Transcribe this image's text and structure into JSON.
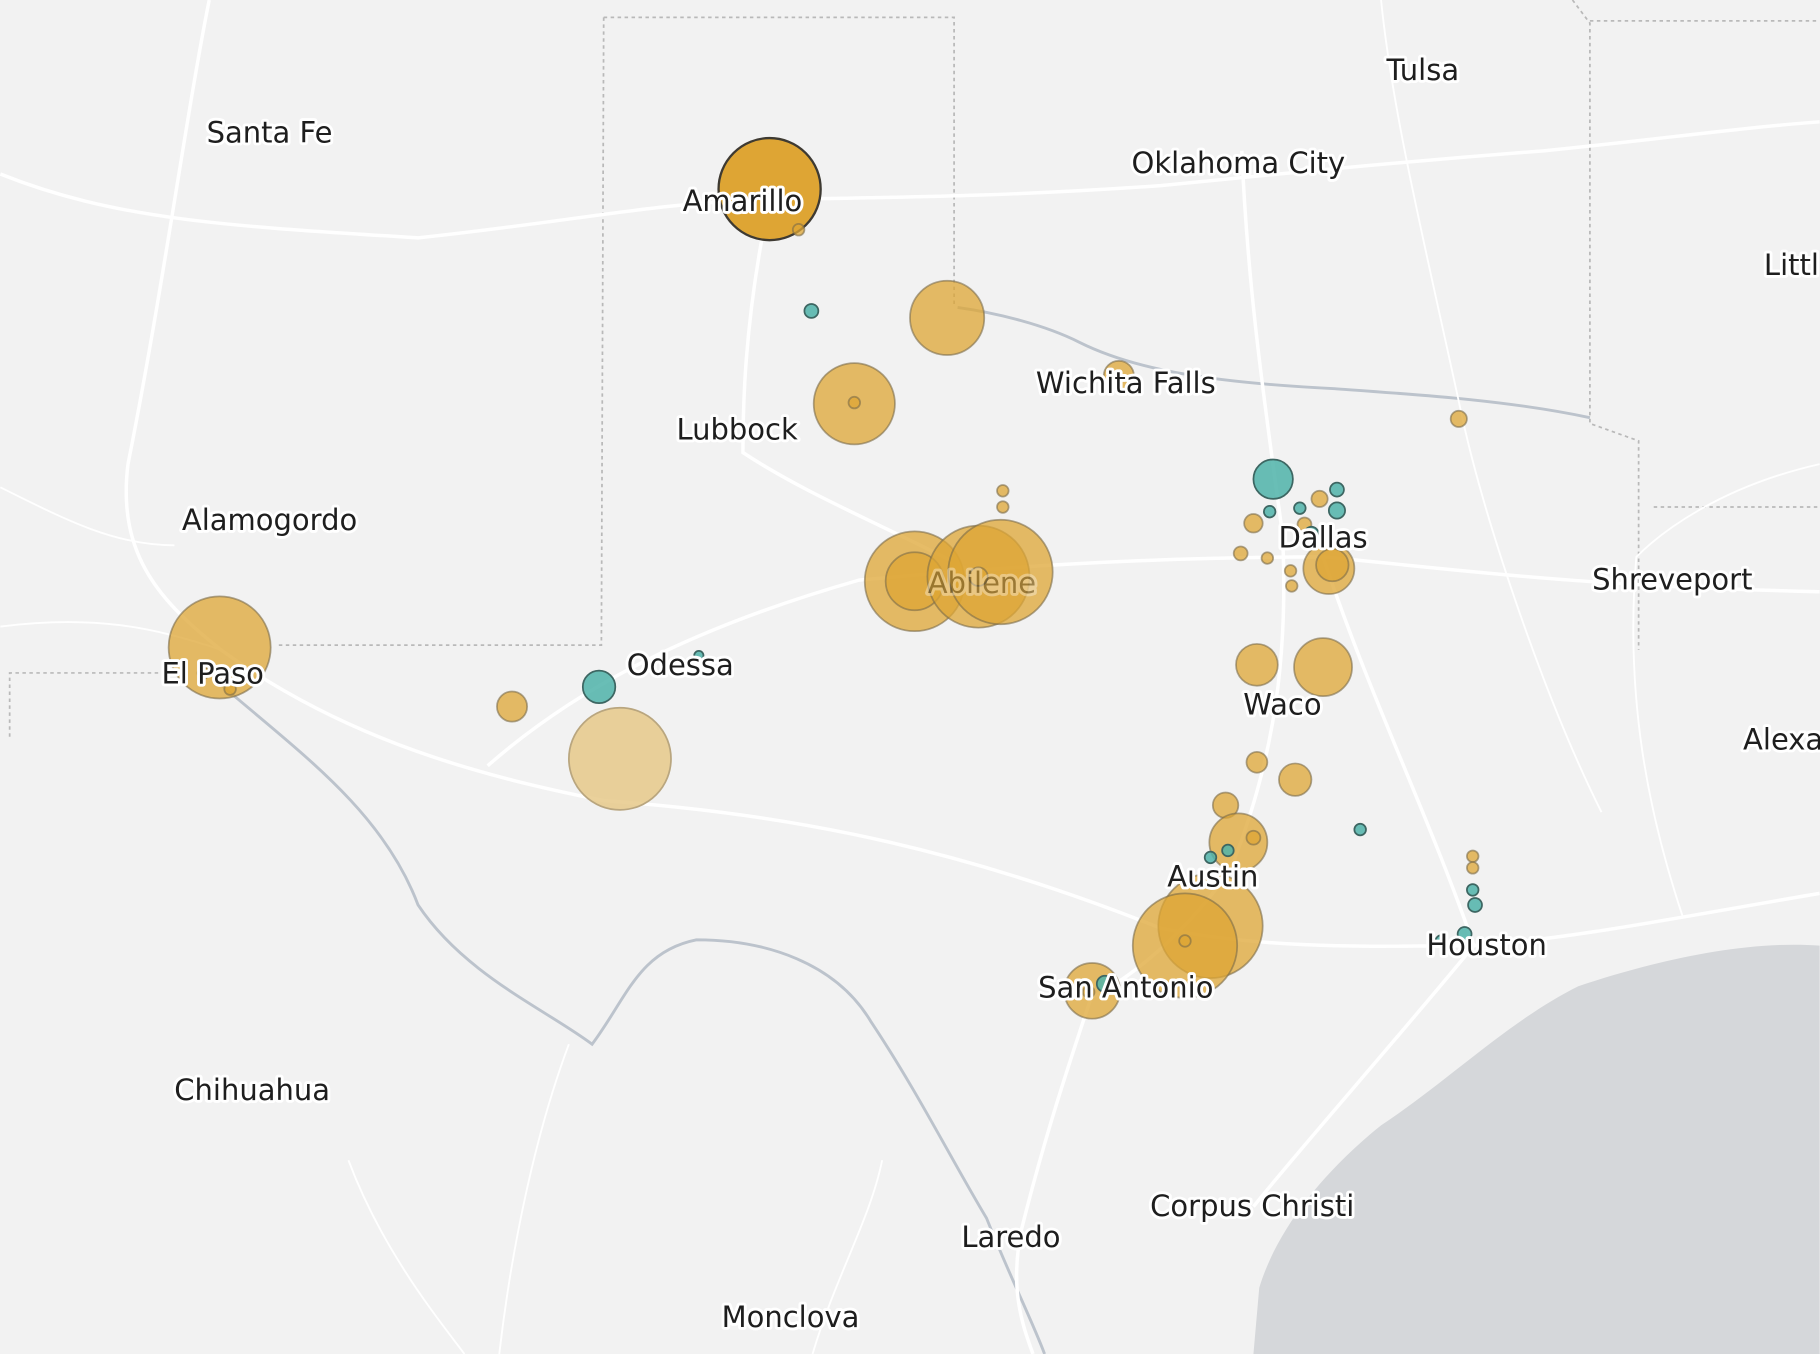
{
  "map": {
    "labels": [
      "Santa Fe",
      "Tulsa",
      "Oklahoma City",
      "Littl",
      "Amarillo",
      "Lubbock",
      "Wichita Falls",
      "Alamogordo",
      "Abilene",
      "Dallas",
      "Shreveport",
      "El Paso",
      "Odessa",
      "Waco",
      "Alexa",
      "Austin",
      "Houston",
      "San Antonio",
      "Chihuahua",
      "Corpus Christi",
      "Laredo",
      "Monclova"
    ]
  }
}
